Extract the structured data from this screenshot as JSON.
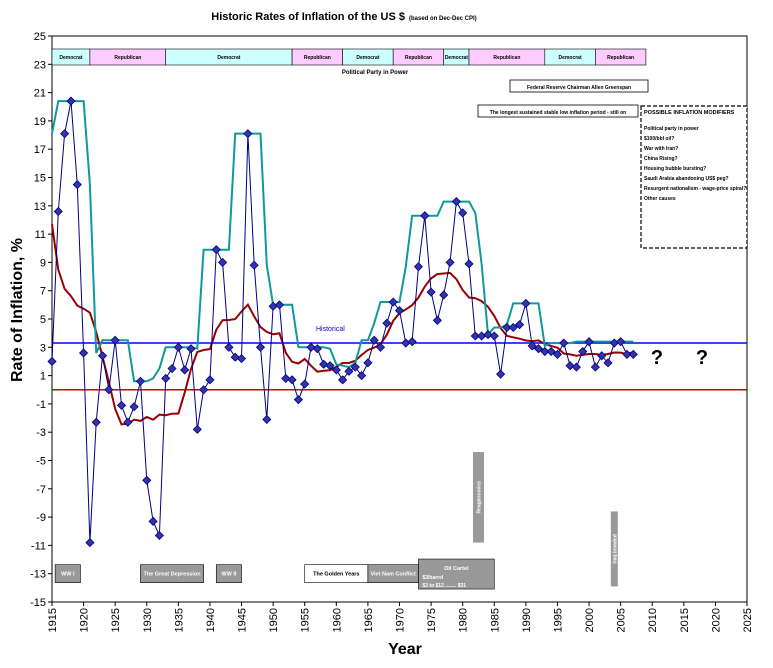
{
  "chart_data": {
    "type": "line",
    "title": "Historic Rates of Inflation of the US $",
    "subtitle": "(based on Dec-Dec CPI)",
    "xlabel": "Year",
    "ylabel": "Rate of Inflation, %",
    "xlim": [
      1915,
      2025
    ],
    "ylim": [
      -15,
      25
    ],
    "x_ticks": [
      "1915",
      "1920",
      "1925",
      "1930",
      "1935",
      "1940",
      "1945",
      "1950",
      "1955",
      "1960",
      "1965",
      "1970",
      "1975",
      "1980",
      "1985",
      "1990",
      "1995",
      "2000",
      "2005",
      "2010",
      "2015",
      "2020",
      "2025"
    ],
    "y_ticks": [
      "-15",
      "-13",
      "-11",
      "-9",
      "-7",
      "-5",
      "-3",
      "-1",
      "1",
      "3",
      "5",
      "7",
      "9",
      "11",
      "13",
      "15",
      "17",
      "19",
      "21",
      "23",
      "25"
    ],
    "grid": false,
    "series": [
      {
        "x": [
          1915,
          1916,
          1917,
          1918,
          1919,
          1920,
          1921,
          1922,
          1923,
          1924,
          1925,
          1926,
          1927,
          1928,
          1929,
          1930,
          1931,
          1932,
          1933,
          1934,
          1935,
          1936,
          1937,
          1938,
          1939,
          1940,
          1941,
          1942,
          1943,
          1944,
          1945,
          1946,
          1947,
          1948,
          1949,
          1950,
          1951,
          1952,
          1953,
          1954,
          1955,
          1956,
          1957,
          1958,
          1959,
          1960,
          1961,
          1962,
          1963,
          1964,
          1965,
          1966,
          1967,
          1968,
          1969,
          1970,
          1971,
          1972,
          1973,
          1974,
          1975,
          1976,
          1977,
          1978,
          1979,
          1980,
          1981,
          1982,
          1983,
          1984,
          1985,
          1986,
          1987,
          1988,
          1989,
          1990,
          1991,
          1992,
          1993,
          1994,
          1995,
          1996,
          1997,
          1998,
          1999,
          2000,
          2001,
          2002,
          2003,
          2004,
          2005,
          2006,
          2007
        ],
        "y": [
          2.0,
          12.6,
          18.1,
          20.4,
          14.5,
          2.6,
          -10.8,
          -2.3,
          2.4,
          0.0,
          3.5,
          -1.1,
          -2.3,
          -1.2,
          0.6,
          -6.4,
          -9.3,
          -10.3,
          0.8,
          1.5,
          3.0,
          1.4,
          2.9,
          -2.8,
          0.0,
          0.7,
          9.9,
          9.0,
          3.0,
          2.3,
          2.2,
          18.1,
          8.8,
          3.0,
          -2.1,
          5.9,
          6.0,
          0.8,
          0.7,
          -0.7,
          0.4,
          3.0,
          2.9,
          1.8,
          1.7,
          1.4,
          0.7,
          1.3,
          1.6,
          1.0,
          1.9,
          3.5,
          3.0,
          4.7,
          6.2,
          5.6,
          3.3,
          3.4,
          8.7,
          12.3,
          6.9,
          4.9,
          6.7,
          9.0,
          13.3,
          12.5,
          8.9,
          3.8,
          3.8,
          3.9,
          3.8,
          1.1,
          4.4,
          4.4,
          4.6,
          6.1,
          3.1,
          2.9,
          2.7,
          2.7,
          2.5,
          3.3,
          1.7,
          1.6,
          2.7,
          3.4,
          1.6,
          2.4,
          1.9,
          3.3,
          3.4,
          2.5,
          2.5
        ]
      }
    ],
    "reference_lines": [
      {
        "label": "Historical",
        "value": 3.3,
        "color": "#0000ff"
      },
      {
        "label": "",
        "value": 0,
        "color": "#cc0000"
      }
    ],
    "envelope_line_color": "#119999",
    "trend_line_color": "#990000",
    "marker_color": "#000080",
    "party_bar_label": "Political Party in Power",
    "party_bands": [
      {
        "label": "Democrat",
        "x0": 1915,
        "x1": 1921,
        "color": "#ccffff"
      },
      {
        "label": "Republican",
        "x0": 1921,
        "x1": 1933,
        "color": "#ffccff"
      },
      {
        "label": "Democrat",
        "x0": 1933,
        "x1": 1953,
        "color": "#ccffff"
      },
      {
        "label": "Republican",
        "x0": 1953,
        "x1": 1961,
        "color": "#ffccff"
      },
      {
        "label": "Democrat",
        "x0": 1961,
        "x1": 1969,
        "color": "#ccffff"
      },
      {
        "label": "Republican",
        "x0": 1969,
        "x1": 1977,
        "color": "#ffccff"
      },
      {
        "label": "Democrat",
        "x0": 1977,
        "x1": 1981,
        "color": "#ccffff"
      },
      {
        "label": "Republican",
        "x0": 1981,
        "x1": 1993,
        "color": "#ffccff"
      },
      {
        "label": "Democrat",
        "x0": 1993,
        "x1": 2001,
        "color": "#ccffff"
      },
      {
        "label": "Republican",
        "x0": 2001,
        "x1": 2009,
        "color": "#ffccff"
      }
    ],
    "fed_chairman_note": "Federal Reserve Chairman Allen Greenspan",
    "stable_period_note": "The longest sustained stable low inflation period - still on",
    "modifiers": {
      "heading": "POSSIBLE INFLATION MODIFIERS",
      "items": [
        "Political party in power",
        "$100/bbl oil?",
        "War with Iran?",
        "China Rising?",
        "Housing bubble bursting?",
        "Saudi Arabia abandoning US$ peg?",
        "Resurgent nationalism - wage-price spiral?",
        "Other causes"
      ]
    },
    "question_marks": [
      "?",
      "?"
    ],
    "events": [
      {
        "label": "WW I",
        "x0": 1915.5,
        "x1": 1919.5,
        "y": -13
      },
      {
        "label": "The Great Depression",
        "x0": 1929,
        "x1": 1939,
        "y": -13
      },
      {
        "label": "WW II",
        "x0": 1941,
        "x1": 1945,
        "y": -13
      },
      {
        "label": "The Golden Years",
        "x0": 1955,
        "x1": 1965,
        "y": -13
      },
      {
        "label": "Viet Nam Conflict",
        "x0": 1965,
        "x1": 1973,
        "y": -13
      },
      {
        "label": "Oil Cartel",
        "x0": 1973,
        "x1": 1985,
        "y": -12.6
      }
    ],
    "oil_prices": [
      "$3/barrel",
      "$3 to $12 ........ $31"
    ],
    "vertical_events": [
      {
        "label": "Reaganomics",
        "x": 1982.5,
        "y0": -4.4,
        "y1": -10.8
      },
      {
        "label": "Iraq invaded",
        "x": 2004,
        "y0": -8.6,
        "y1": -13.9
      }
    ]
  }
}
